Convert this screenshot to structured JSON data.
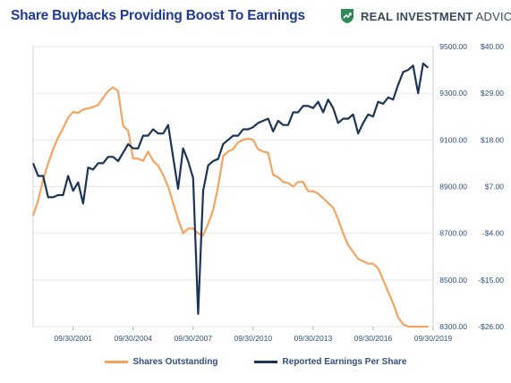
{
  "header": {
    "title": "Share Buybacks Providing Boost To Earnings",
    "brand": "REAL INVESTMENT ADVICE",
    "brand_bold": "REAL INVESTMENT",
    "brand_light": " ADVICE",
    "brand_color": "#2e8b57"
  },
  "chart_data": {
    "type": "line",
    "x_tick_labels": [
      "09/30/2001",
      "09/30/2004",
      "09/30/2007",
      "09/30/2010",
      "09/30/2013",
      "09/30/2016",
      "09/30/2019"
    ],
    "x_tick_years": [
      2001.75,
      2004.75,
      2007.75,
      2010.75,
      2013.75,
      2016.75,
      2019.75
    ],
    "xlim": [
      1999.75,
      2019.75
    ],
    "left_axis": {
      "ylim": [
        8300,
        9500
      ],
      "ticks": [
        "9500.00",
        "9300.00",
        "9100.00",
        "8900.00",
        "8700.00",
        "8500.00",
        "8300.00"
      ],
      "tick_values": [
        9500,
        9300,
        9100,
        8900,
        8700,
        8500,
        8300
      ]
    },
    "right_axis": {
      "ylim": [
        -26,
        40
      ],
      "ticks": [
        "$40.00",
        "$29.00",
        "$18.00",
        "$7.00",
        "-$4.00",
        "-$15.00",
        "-$26.00"
      ],
      "tick_values": [
        40,
        29,
        18,
        7,
        -4,
        -15,
        -26
      ]
    },
    "grid": true,
    "legend_placement": "bottom",
    "series": [
      {
        "name": "Shares Outstanding",
        "axis": "left",
        "color": "#f4a460",
        "x": [
          1999.75,
          2000.0,
          2000.25,
          2000.5,
          2000.75,
          2001.0,
          2001.25,
          2001.5,
          2001.75,
          2002.0,
          2002.25,
          2002.5,
          2002.75,
          2003.0,
          2003.25,
          2003.5,
          2003.75,
          2004.0,
          2004.25,
          2004.5,
          2004.75,
          2005.0,
          2005.25,
          2005.5,
          2005.75,
          2006.0,
          2006.25,
          2006.5,
          2006.75,
          2007.0,
          2007.25,
          2007.5,
          2007.75,
          2008.0,
          2008.25,
          2008.5,
          2008.75,
          2009.0,
          2009.25,
          2009.5,
          2009.75,
          2010.0,
          2010.25,
          2010.5,
          2010.75,
          2011.0,
          2011.25,
          2011.5,
          2011.75,
          2012.0,
          2012.25,
          2012.5,
          2012.75,
          2013.0,
          2013.25,
          2013.5,
          2013.75,
          2014.0,
          2014.25,
          2014.5,
          2014.75,
          2015.0,
          2015.25,
          2015.5,
          2015.75,
          2016.0,
          2016.25,
          2016.5,
          2016.75,
          2017.0,
          2017.25,
          2017.5,
          2017.75,
          2018.0,
          2018.25,
          2018.5,
          2018.75,
          2019.0,
          2019.25,
          2019.5
        ],
        "values": [
          8775,
          8840,
          8930,
          9000,
          9060,
          9110,
          9150,
          9195,
          9220,
          9215,
          9230,
          9235,
          9240,
          9250,
          9280,
          9310,
          9325,
          9310,
          9160,
          9140,
          9020,
          9020,
          9010,
          9050,
          9010,
          8990,
          8950,
          8900,
          8830,
          8760,
          8700,
          8720,
          8720,
          8700,
          8690,
          8740,
          8800,
          8900,
          9030,
          9050,
          9060,
          9090,
          9100,
          9105,
          9100,
          9060,
          9050,
          9045,
          8950,
          8940,
          8920,
          8915,
          8900,
          8920,
          8920,
          8880,
          8880,
          8870,
          8850,
          8830,
          8810,
          8760,
          8700,
          8650,
          8620,
          8590,
          8580,
          8570,
          8570,
          8550,
          8500,
          8450,
          8400,
          8340,
          8310,
          8300,
          8300,
          8300,
          8300,
          8300
        ]
      },
      {
        "name": "Reported Earnings Per Share",
        "axis": "right",
        "color": "#1c3557",
        "x": [
          1999.75,
          2000.0,
          2000.25,
          2000.5,
          2000.75,
          2001.0,
          2001.25,
          2001.5,
          2001.75,
          2002.0,
          2002.25,
          2002.5,
          2002.75,
          2003.0,
          2003.25,
          2003.5,
          2003.75,
          2004.0,
          2004.25,
          2004.5,
          2004.75,
          2005.0,
          2005.25,
          2005.5,
          2005.75,
          2006.0,
          2006.25,
          2006.5,
          2006.75,
          2007.0,
          2007.25,
          2007.5,
          2007.75,
          2008.0,
          2008.25,
          2008.5,
          2008.75,
          2009.0,
          2009.25,
          2009.5,
          2009.75,
          2010.0,
          2010.25,
          2010.5,
          2010.75,
          2011.0,
          2011.25,
          2011.5,
          2011.75,
          2012.0,
          2012.25,
          2012.5,
          2012.75,
          2013.0,
          2013.25,
          2013.5,
          2013.75,
          2014.0,
          2014.25,
          2014.5,
          2014.75,
          2015.0,
          2015.25,
          2015.5,
          2015.75,
          2016.0,
          2016.25,
          2016.5,
          2016.75,
          2017.0,
          2017.25,
          2017.5,
          2017.75,
          2018.0,
          2018.25,
          2018.5,
          2018.75,
          2019.0,
          2019.25,
          2019.5
        ],
        "values": [
          12.5,
          9.5,
          9.5,
          4.5,
          4.5,
          5,
          5,
          9.5,
          6,
          8,
          3,
          11.5,
          11,
          12.5,
          12.5,
          14,
          14,
          13,
          15,
          17,
          16,
          16,
          19,
          19,
          20.5,
          19.5,
          19.5,
          21.5,
          14,
          6.5,
          16,
          13,
          9,
          -23,
          6,
          12,
          13,
          13.5,
          17,
          18,
          19,
          19,
          20.5,
          20.5,
          21,
          22,
          22.5,
          23,
          20,
          22.5,
          21.5,
          21.5,
          24.5,
          24.5,
          26,
          26,
          25.5,
          27,
          24.5,
          27.5,
          25.5,
          22,
          23,
          23,
          24,
          19.5,
          22,
          24,
          23.5,
          27,
          26.5,
          28,
          27.5,
          31,
          34,
          34.5,
          35.5,
          29,
          36,
          35
        ]
      }
    ]
  }
}
